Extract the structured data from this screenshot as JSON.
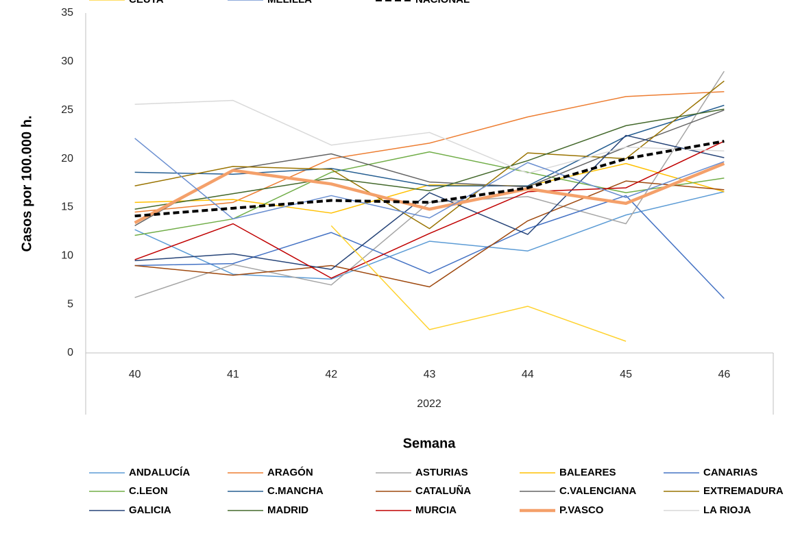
{
  "chart_data": {
    "type": "line",
    "x_label": "Semana",
    "y_label": "Casos por 100.000 h.",
    "categories": [
      "40",
      "41",
      "42",
      "43",
      "44",
      "45",
      "46"
    ],
    "category_group": "2022",
    "ylim": [
      0,
      35
    ],
    "yticks": [
      0,
      5,
      10,
      15,
      20,
      25,
      30,
      35
    ],
    "grid": false,
    "series": [
      {
        "name": "ANDALUCÍA",
        "color": "#5b9bd5",
        "width": 1.5,
        "values": [
          12.7,
          8.1,
          7.6,
          11.5,
          10.5,
          14.2,
          16.6
        ]
      },
      {
        "name": "ARAGÓN",
        "color": "#ed7d31",
        "width": 1.5,
        "values": [
          14.5,
          15.5,
          20.0,
          21.6,
          24.3,
          26.4,
          26.9
        ]
      },
      {
        "name": "ASTURIAS",
        "color": "#a5a5a5",
        "width": 1.5,
        "values": [
          5.7,
          9.1,
          7.0,
          15.5,
          16.1,
          13.3,
          29.0
        ]
      },
      {
        "name": "BALEARES",
        "color": "#ffc000",
        "width": 1.5,
        "values": [
          15.5,
          15.8,
          14.4,
          17.3,
          17.2,
          19.5,
          16.6
        ]
      },
      {
        "name": "CANARIAS",
        "color": "#4472c4",
        "width": 1.5,
        "values": [
          9.0,
          9.2,
          12.4,
          8.2,
          12.8,
          16.2,
          5.6
        ]
      },
      {
        "name": "C.LEON",
        "color": "#70ad47",
        "width": 1.5,
        "values": [
          12.1,
          13.8,
          18.6,
          20.7,
          18.6,
          16.5,
          18.0
        ]
      },
      {
        "name": "C.MANCHA",
        "color": "#255e91",
        "width": 1.5,
        "values": [
          18.6,
          18.4,
          19.0,
          17.2,
          17.2,
          22.3,
          25.5
        ]
      },
      {
        "name": "CATALUÑA",
        "color": "#9e480e",
        "width": 1.5,
        "values": [
          9.0,
          8.0,
          9.0,
          6.8,
          13.6,
          17.7,
          16.8
        ]
      },
      {
        "name": "C.VALENCIANA",
        "color": "#636363",
        "width": 1.5,
        "values": [
          13.1,
          18.9,
          20.5,
          17.6,
          17.1,
          21.2,
          25.0
        ]
      },
      {
        "name": "EXTREMADURA",
        "color": "#997300",
        "width": 1.5,
        "values": [
          17.2,
          19.2,
          18.9,
          12.8,
          20.6,
          20.0,
          28.0
        ]
      },
      {
        "name": "GALICIA",
        "color": "#264478",
        "width": 1.5,
        "values": [
          9.5,
          10.2,
          8.6,
          16.5,
          12.2,
          22.4,
          20.1
        ]
      },
      {
        "name": "MADRID",
        "color": "#43682b",
        "width": 1.5,
        "values": [
          14.8,
          16.4,
          18.0,
          16.7,
          19.8,
          23.4,
          25.1
        ]
      },
      {
        "name": "MURCIA",
        "color": "#c00000",
        "width": 1.5,
        "values": [
          9.6,
          13.3,
          7.7,
          12.3,
          16.6,
          17.0,
          21.8
        ]
      },
      {
        "name": "P.VASCO",
        "color": "#f4a06a",
        "width": 4.5,
        "values": [
          13.4,
          18.8,
          17.4,
          14.8,
          16.9,
          15.4,
          19.5
        ]
      },
      {
        "name": "LA RIOJA",
        "color": "#d9d9d9",
        "width": 1.5,
        "values": [
          25.6,
          26.0,
          21.4,
          22.7,
          18.5,
          21.2,
          20.8
        ]
      },
      {
        "name": "CEUTA",
        "color": "#ffd22e",
        "width": 1.5,
        "values": [
          null,
          null,
          13.1,
          2.4,
          4.8,
          1.2,
          null
        ]
      },
      {
        "name": "MELILLA",
        "color": "#698ed0",
        "width": 1.5,
        "values": [
          22.1,
          13.8,
          16.2,
          13.9,
          19.6,
          16.0,
          19.7
        ]
      },
      {
        "name": "NACIONAL",
        "color": "#000000",
        "width": 4,
        "dashed": true,
        "values": [
          14.1,
          14.9,
          15.7,
          15.5,
          17.0,
          20.0,
          21.8
        ]
      }
    ]
  }
}
